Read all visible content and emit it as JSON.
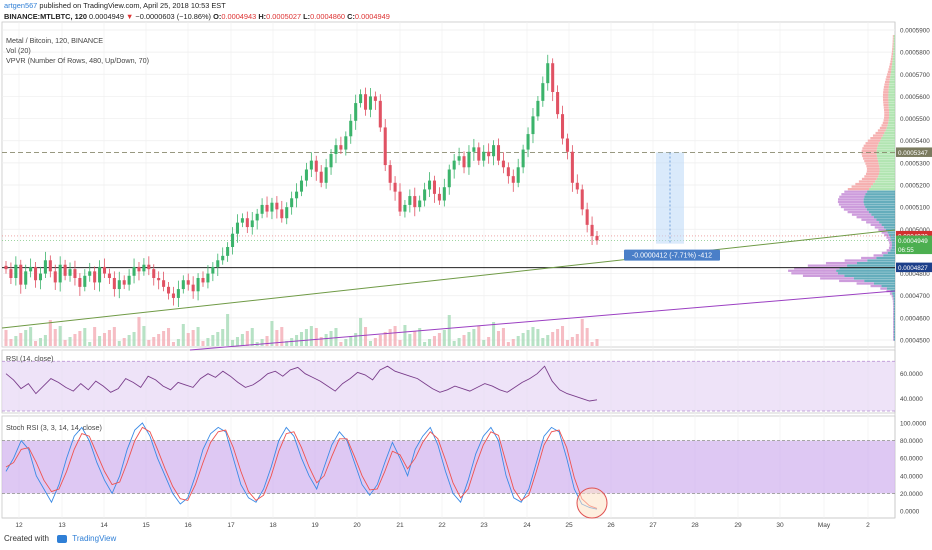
{
  "header": {
    "author": "artgen567",
    "published_text": "published on TradingView.com, April 25, 2018 10:53 EST",
    "symbol": "BINANCE:MTLBTC, 120",
    "last": "0.0004949",
    "arrow": "▼",
    "change": "−0.0000603 (−10.86%)",
    "o_label": "O:",
    "o_value": "0.0004943",
    "h_label": "H:",
    "h_value": "0.0005027",
    "l_label": "L:",
    "l_value": "0.0004860",
    "c_label": "C:",
    "c_value": "0.0004949"
  },
  "legend": {
    "title": "Metal / Bitcoin, 120, BINANCE",
    "vol": "Vol (20)",
    "vpvr": "VPVR (Number Of Rows, 480, Up/Down, 70)",
    "rsi": "RSI (14, close)",
    "stoch": "Stoch RSI (3, 3, 14, 14, close)"
  },
  "measure_label": "-0.0000412 (-7.71%) -412",
  "price_tags": [
    {
      "text": "0.0005347",
      "bg": "#7a7a5e"
    },
    {
      "text": "0.0004970",
      "bg": "#d32f2f"
    },
    {
      "text": "0.0004949",
      "bg": "#4caf50"
    },
    {
      "text": "06:55",
      "bg": "#4caf50"
    },
    {
      "text": "0.0004827",
      "bg": "#1c3f8a"
    }
  ],
  "price_axis_labels": [
    "0.0005900",
    "0.0005800",
    "0.0005700",
    "0.0005600",
    "0.0005500",
    "0.0005400",
    "0.0005300",
    "0.0005200",
    "0.0005100",
    "0.0005000",
    "0.0004900",
    "0.0004800",
    "0.0004700",
    "0.0004600",
    "0.0004500"
  ],
  "rsi_axis_labels": [
    "60.0000",
    "40.0000"
  ],
  "stoch_axis_labels": [
    "100.0000",
    "80.0000",
    "60.0000",
    "40.0000",
    "20.0000",
    "0.0000"
  ],
  "x_axis_labels": [
    "12",
    "13",
    "14",
    "15",
    "16",
    "17",
    "18",
    "19",
    "20",
    "21",
    "22",
    "23",
    "24",
    "25",
    "26",
    "27",
    "28",
    "29",
    "30",
    "May",
    "2"
  ],
  "footer": {
    "created": "Created with",
    "brand": "TradingView"
  },
  "colors": {
    "up": "#26a69a",
    "down": "#ef5350",
    "candle_up": "#3bb36b",
    "candle_down": "#e05263",
    "rsi": "#7b3f8c",
    "stoch_k": "#3b8be6",
    "stoch_d": "#ef5350",
    "band": "#e7d7f5"
  },
  "chart_data": [
    {
      "type": "candlestick",
      "title": "Metal / Bitcoin, 120, BINANCE",
      "x_axis": [
        "12",
        "13",
        "14",
        "15",
        "16",
        "17",
        "18",
        "19",
        "20",
        "21",
        "22",
        "23",
        "24",
        "25",
        "26",
        "27",
        "28",
        "29",
        "30",
        "May",
        "2"
      ],
      "close_series": [
        0.000482,
        0.000478,
        0.000484,
        0.000475,
        0.000481,
        0.000483,
        0.000477,
        0.00048,
        0.000486,
        0.000481,
        0.000476,
        0.000484,
        0.000479,
        0.000482,
        0.000478,
        0.000474,
        0.000479,
        0.000481,
        0.000476,
        0.000483,
        0.00048,
        0.000478,
        0.000473,
        0.000477,
        0.000475,
        0.000479,
        0.000483,
        0.000481,
        0.000484,
        0.000482,
        0.000478,
        0.000477,
        0.000474,
        0.000471,
        0.000469,
        0.000473,
        0.000477,
        0.000475,
        0.000472,
        0.000478,
        0.000476,
        0.00048,
        0.000483,
        0.000486,
        0.000488,
        0.000492,
        0.000498,
        0.000503,
        0.000505,
        0.000501,
        0.000504,
        0.000507,
        0.000511,
        0.000508,
        0.000512,
        0.000509,
        0.000505,
        0.00051,
        0.000514,
        0.000517,
        0.000522,
        0.000527,
        0.000531,
        0.000526,
        0.000521,
        0.000528,
        0.000534,
        0.000538,
        0.000536,
        0.000542,
        0.000549,
        0.000557,
        0.000561,
        0.000554,
        0.00056,
        0.000558,
        0.000546,
        0.000529,
        0.000521,
        0.000517,
        0.000508,
        0.000511,
        0.000515,
        0.00051,
        0.000513,
        0.000518,
        0.000522,
        0.000516,
        0.000513,
        0.000519,
        0.000527,
        0.000531,
        0.000533,
        0.000528,
        0.000535,
        0.000537,
        0.000531,
        0.000535,
        0.000533,
        0.000538,
        0.000531,
        0.000528,
        0.000524,
        0.000521,
        0.000528,
        0.000536,
        0.000543,
        0.000551,
        0.000558,
        0.000566,
        0.000575,
        0.000562,
        0.000552,
        0.000541,
        0.000535,
        0.000521,
        0.000518,
        0.000509,
        0.000502,
        0.000497,
        0.000495
      ],
      "horizontal_levels": [
        0.0005347,
        0.0004827
      ],
      "rsi": {
        "values": [
          60,
          55,
          48,
          52,
          44,
          50,
          56,
          53,
          49,
          46,
          52,
          47,
          54,
          50,
          45,
          48,
          56,
          53,
          49,
          58,
          55,
          50,
          47,
          53,
          51,
          49,
          56,
          60,
          57,
          62,
          58,
          53,
          49,
          51,
          55,
          60,
          62,
          58,
          63,
          65,
          60,
          57,
          54,
          50,
          46,
          52,
          56,
          61,
          59,
          55,
          63,
          66,
          62,
          60,
          58,
          56,
          52,
          48,
          45,
          47,
          50,
          48,
          46,
          49,
          52,
          50,
          47,
          45,
          49,
          53,
          56,
          60,
          66,
          54,
          47,
          44,
          42,
          40,
          38,
          39
        ],
        "ylim": [
          30,
          75
        ]
      },
      "stoch_rsi": {
        "k": [
          45,
          60,
          80,
          70,
          40,
          25,
          10,
          30,
          60,
          85,
          95,
          80,
          55,
          35,
          20,
          40,
          70,
          92,
          100,
          85,
          60,
          40,
          20,
          8,
          15,
          40,
          70,
          88,
          95,
          90,
          60,
          30,
          15,
          10,
          25,
          50,
          80,
          95,
          85,
          60,
          40,
          25,
          50,
          75,
          90,
          80,
          55,
          30,
          18,
          30,
          55,
          78,
          60,
          40,
          70,
          85,
          95,
          75,
          45,
          20,
          10,
          35,
          65,
          85,
          95,
          80,
          40,
          15,
          10,
          25,
          55,
          85,
          95,
          90,
          60,
          25,
          8,
          4,
          2
        ],
        "d": [
          50,
          55,
          70,
          72,
          55,
          35,
          22,
          25,
          45,
          70,
          88,
          85,
          65,
          45,
          30,
          33,
          55,
          80,
          95,
          90,
          70,
          48,
          28,
          14,
          12,
          30,
          55,
          78,
          90,
          92,
          72,
          45,
          22,
          12,
          18,
          40,
          68,
          88,
          90,
          72,
          50,
          32,
          40,
          62,
          82,
          82,
          62,
          40,
          24,
          25,
          45,
          68,
          64,
          48,
          60,
          78,
          90,
          82,
          58,
          32,
          15,
          25,
          52,
          75,
          90,
          86,
          55,
          25,
          12,
          18,
          45,
          75,
          90,
          92,
          72,
          38,
          14,
          6,
          3
        ],
        "ylim": [
          0,
          100
        ]
      }
    }
  ]
}
